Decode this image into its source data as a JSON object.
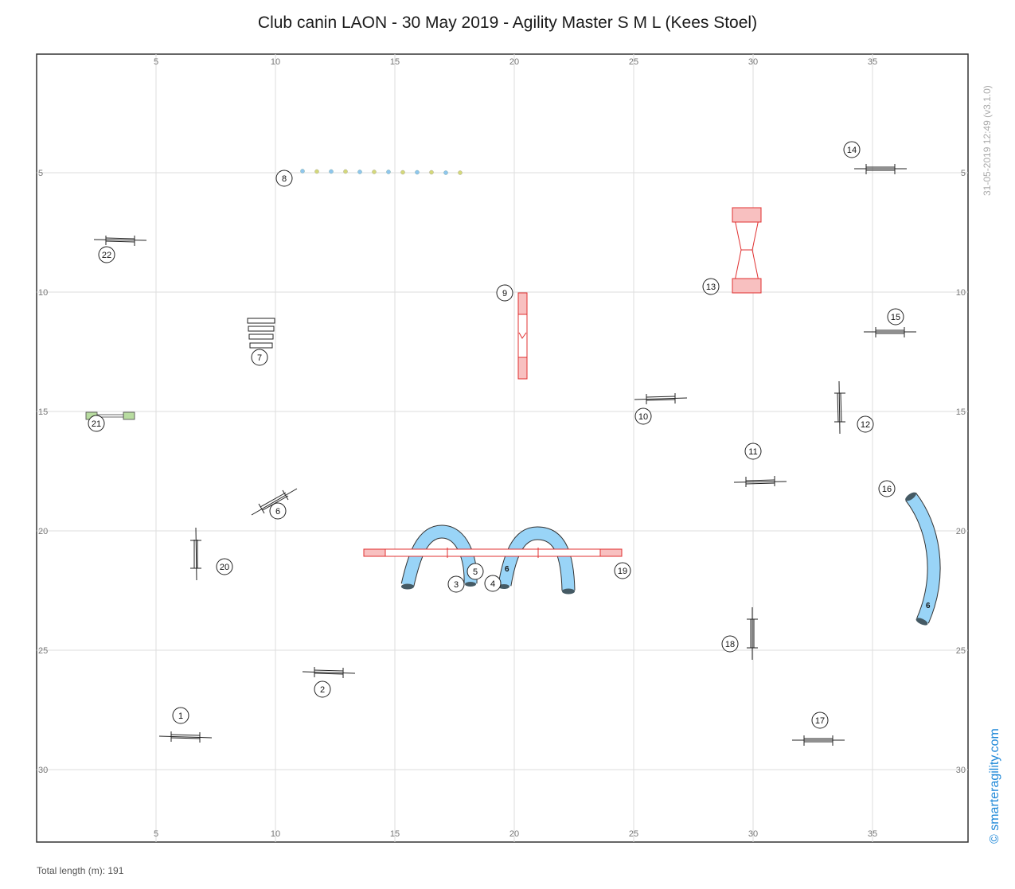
{
  "title": "Club canin LAON - 30 May 2019 - Agility Master S M L (Kees Stoel)",
  "total_length": "Total length (m): 191",
  "version_stamp": "31-05-2019 12:49  (v3.1.0)",
  "brand": "© smarteragility.com",
  "axis": {
    "x_ticks": [
      "5",
      "10",
      "15",
      "20",
      "25",
      "30",
      "35"
    ],
    "y_ticks": [
      "5",
      "10",
      "15",
      "20",
      "25",
      "30"
    ]
  },
  "colors": {
    "tunnel": "#99d4f7",
    "contact": "#f8c0c0",
    "contact_stroke": "#e03030",
    "wall_green": "#b8dca0",
    "grid": "#dddddd",
    "brand": "#1e88d8"
  },
  "obstacles": [
    {
      "number": "1",
      "type": "jump"
    },
    {
      "number": "2",
      "type": "jump"
    },
    {
      "number": "3",
      "type": "tunnel",
      "length": "6"
    },
    {
      "number": "4",
      "type": "tunnel",
      "length": "6"
    },
    {
      "number": "5",
      "type": "dogwalk"
    },
    {
      "number": "6",
      "type": "jump"
    },
    {
      "number": "7",
      "type": "long-jump"
    },
    {
      "number": "8",
      "type": "weave-poles"
    },
    {
      "number": "9",
      "type": "a-frame"
    },
    {
      "number": "10",
      "type": "jump"
    },
    {
      "number": "11",
      "type": "jump"
    },
    {
      "number": "12",
      "type": "jump"
    },
    {
      "number": "13",
      "type": "see-saw"
    },
    {
      "number": "14",
      "type": "jump"
    },
    {
      "number": "15",
      "type": "jump"
    },
    {
      "number": "16",
      "type": "tunnel",
      "length": "6"
    },
    {
      "number": "17",
      "type": "jump"
    },
    {
      "number": "18",
      "type": "jump"
    },
    {
      "number": "19",
      "type": "dogwalk"
    },
    {
      "number": "20",
      "type": "jump"
    },
    {
      "number": "21",
      "type": "wall"
    },
    {
      "number": "22",
      "type": "jump"
    }
  ]
}
